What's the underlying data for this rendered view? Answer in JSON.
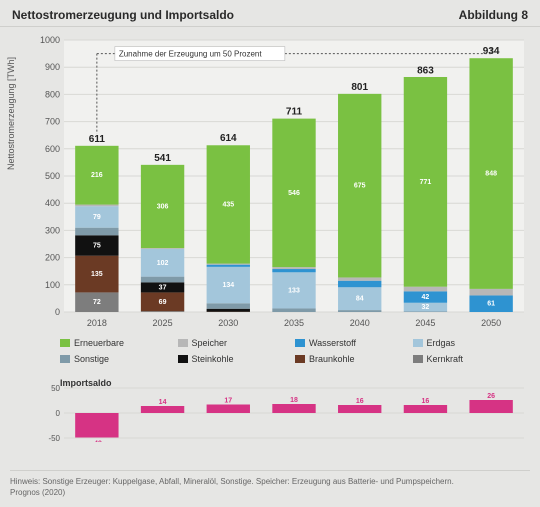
{
  "header": {
    "title": "Nettostromerzeugung und Importsaldo",
    "fig_no": "Abbildung 8"
  },
  "y_label": "Nettostromerzeugung [TWh]",
  "main_chart": {
    "type": "stacked-bar",
    "background_color": "#e6e6e4",
    "plot_bg": "#f1f1ef",
    "grid_color": "#d8d8d4",
    "axis_color": "#bfbfbb",
    "label_fontsize": 9,
    "value_fontsize": 7,
    "ylim": [
      0,
      1000
    ],
    "ytick_step": 100,
    "categories": [
      "2018",
      "2025",
      "2030",
      "2035",
      "2040",
      "2045",
      "2050"
    ],
    "totals": [
      611,
      541,
      614,
      711,
      801,
      863,
      934
    ],
    "annotation": {
      "text": "Zunahme der Erzeugung um 50 Prozent",
      "from_idx": 0,
      "to_idx": 6,
      "y": 950
    },
    "series": [
      {
        "key": "erneuerbare",
        "label": "Erneuerbare",
        "color": "#7ac142",
        "values": [
          216,
          306,
          435,
          546,
          675,
          771,
          848
        ]
      },
      {
        "key": "speicher",
        "label": "Speicher",
        "color": "#b7b7b7",
        "values": [
          6,
          3,
          4,
          7,
          12,
          17,
          24
        ]
      },
      {
        "key": "wasserstoff",
        "label": "Wasserstoff",
        "color": "#2e93d1",
        "values": [
          0,
          0,
          8,
          12,
          24,
          42,
          61
        ]
      },
      {
        "key": "erdgas",
        "label": "Erdgas",
        "color": "#a3c6db",
        "values": [
          79,
          102,
          134,
          133,
          84,
          32,
          0
        ]
      },
      {
        "key": "sonstige",
        "label": "Sonstige",
        "color": "#7f9aa8",
        "values": [
          28,
          21,
          20,
          13,
          7,
          2,
          0
        ]
      },
      {
        "key": "steinkohle",
        "label": "Steinkohle",
        "color": "#111111",
        "values": [
          75,
          37,
          11,
          0,
          0,
          0,
          0
        ]
      },
      {
        "key": "braunkohle",
        "label": "Braunkohle",
        "color": "#6b3a24",
        "values": [
          135,
          69,
          1,
          0,
          0,
          0,
          0
        ]
      },
      {
        "key": "kernkraft",
        "label": "Kernkraft",
        "color": "#7d7d7d",
        "values": [
          72,
          3,
          0,
          0,
          0,
          0,
          0
        ]
      }
    ]
  },
  "import_chart": {
    "type": "bar",
    "title": "Importsaldo",
    "ylim": [
      -50,
      50
    ],
    "ytick_step": 50,
    "bar_color": "#d63384",
    "grid_color": "#d8d8d4",
    "categories": [
      "2018",
      "2025",
      "2030",
      "2035",
      "2040",
      "2045",
      "2050"
    ],
    "values": [
      -49,
      14,
      17,
      18,
      16,
      16,
      26
    ]
  },
  "footer": {
    "note": "Hinweis: Sonstige Erzeuger: Kuppelgase, Abfall, Mineralöl, Sonstige. Speicher: Erzeugung aus Batterie- und Pumpspeichern.",
    "source": "Prognos (2020)"
  }
}
